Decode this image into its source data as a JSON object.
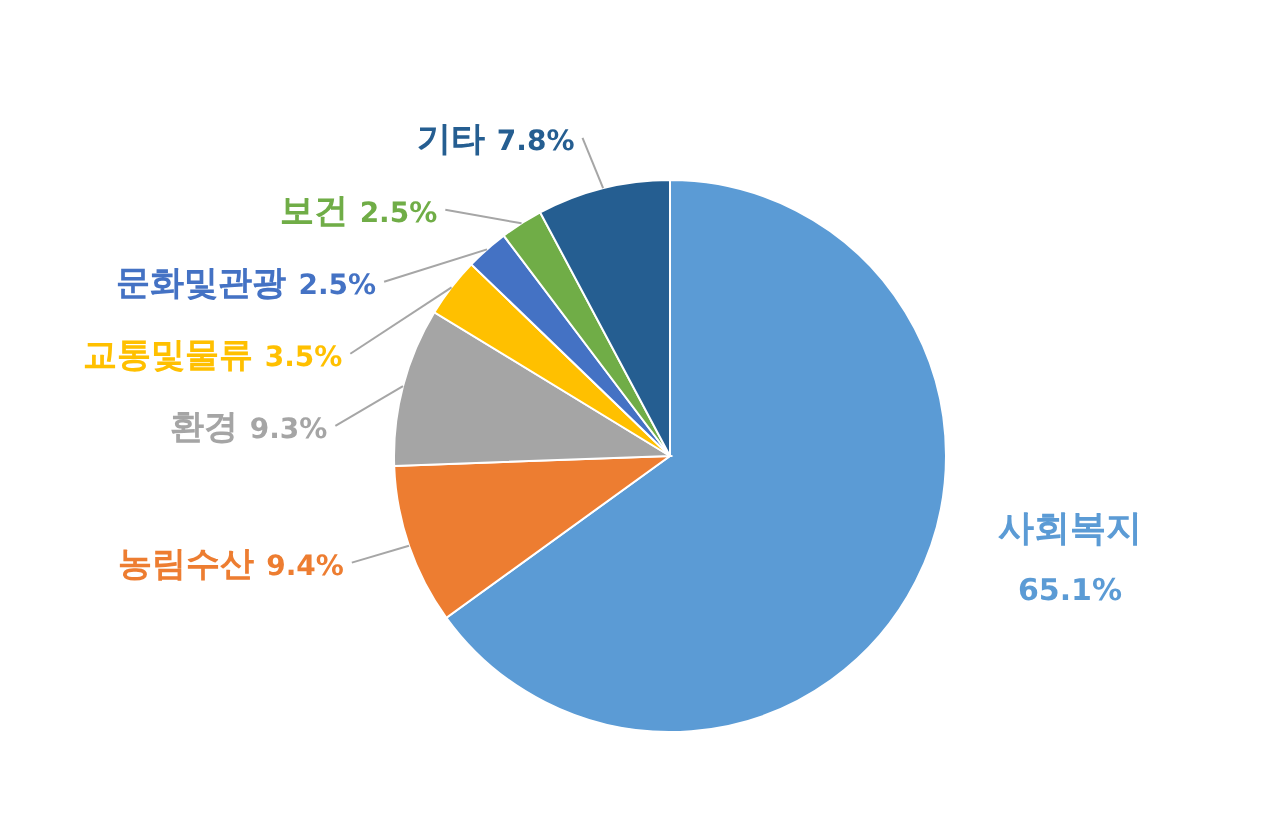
{
  "chart_data": {
    "type": "pie",
    "categories": [
      "사회복지",
      "농림수산",
      "환경",
      "교통및물류",
      "문화및관광",
      "보건",
      "기타"
    ],
    "values": [
      65.1,
      9.4,
      9.3,
      3.5,
      2.5,
      2.5,
      7.8
    ],
    "value_labels": [
      "65.1%",
      "9.4%",
      "9.3%",
      "3.5%",
      "2.5%",
      "2.5%",
      "7.8%"
    ],
    "colors": [
      "#5b9bd5",
      "#ed7d31",
      "#a5a5a5",
      "#ffc000",
      "#4472c4",
      "#70ad47",
      "#255e91"
    ]
  }
}
